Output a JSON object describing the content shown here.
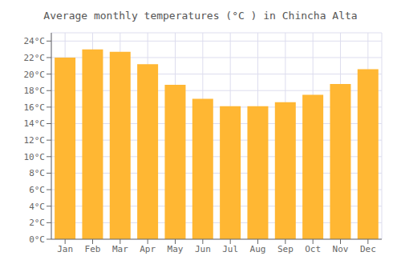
{
  "chart_data": {
    "type": "bar",
    "title": "Average monthly temperatures (°C ) in Chincha Alta",
    "categories": [
      "Jan",
      "Feb",
      "Mar",
      "Apr",
      "May",
      "Jun",
      "Jul",
      "Aug",
      "Sep",
      "Oct",
      "Nov",
      "Dec"
    ],
    "values": [
      22.0,
      23.0,
      22.7,
      21.2,
      18.7,
      17.0,
      16.1,
      16.1,
      16.6,
      17.5,
      18.8,
      20.6
    ],
    "color": "#FFB733",
    "ylim": [
      0,
      25
    ],
    "yticks": [
      {
        "value": 0,
        "label": "0°C"
      },
      {
        "value": 2,
        "label": "2°C"
      },
      {
        "value": 4,
        "label": "4°C"
      },
      {
        "value": 6,
        "label": "6°C"
      },
      {
        "value": 8,
        "label": "8°C"
      },
      {
        "value": 10,
        "label": "10°C"
      },
      {
        "value": 12,
        "label": "12°C"
      },
      {
        "value": 14,
        "label": "14°C"
      },
      {
        "value": 16,
        "label": "16°C"
      },
      {
        "value": 18,
        "label": "18°C"
      },
      {
        "value": 20,
        "label": "20°C"
      },
      {
        "value": 22,
        "label": "22°C"
      },
      {
        "value": 24,
        "label": "24°C"
      }
    ],
    "grid": true
  }
}
